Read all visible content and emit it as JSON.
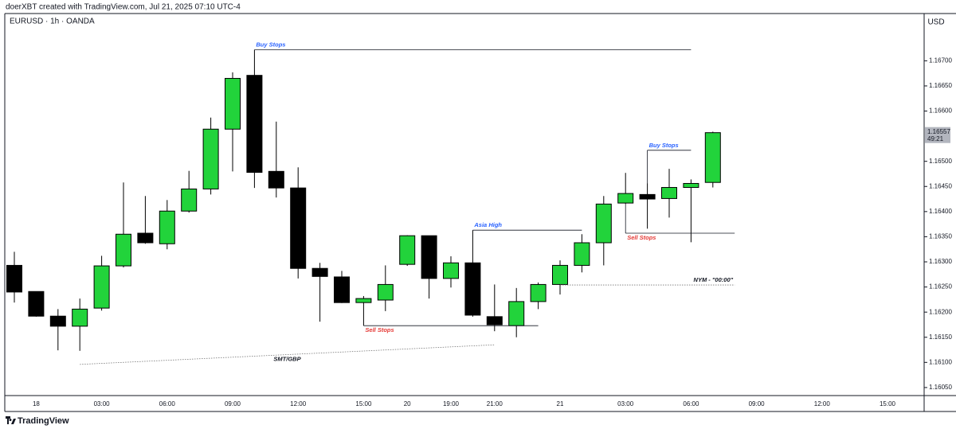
{
  "header": "doerXBT created with TradingView.com, Jul 21, 2025 07:10 UTC-4",
  "footer": "TradingView",
  "chart_data": {
    "type": "candlestick",
    "title": "EURUSD · 1h · OANDA",
    "unit": "USD",
    "categories": [
      null,
      "18",
      null,
      null,
      "03:00",
      null,
      null,
      "06:00",
      null,
      null,
      "09:00",
      null,
      null,
      "12:00",
      null,
      null,
      "15:00",
      null,
      "20",
      null,
      "19:00",
      null,
      "21:00",
      null,
      null,
      "21",
      null,
      null,
      "03:00",
      null,
      null,
      "06:00",
      null,
      null,
      "09:00",
      null,
      null,
      "12:00",
      null,
      null,
      "15:00"
    ],
    "open": [
      1.16293,
      1.16241,
      1.16192,
      1.16172,
      1.16208,
      1.16292,
      1.16357,
      1.16336,
      1.16401,
      1.16445,
      1.16564,
      1.16671,
      1.1648,
      1.16447,
      1.16287,
      1.1627,
      1.16219,
      1.16224,
      1.16295,
      1.16352,
      1.16267,
      1.16298,
      1.16191,
      1.16173,
      1.16221,
      1.16255,
      1.16293,
      1.16338,
      1.16417,
      1.16434,
      1.16426,
      1.16448,
      1.16458,
      null,
      null,
      null,
      null,
      null,
      null,
      null,
      null
    ],
    "high": [
      1.1632,
      1.16241,
      1.16206,
      1.16227,
      1.16312,
      1.16458,
      1.16431,
      1.16423,
      1.16481,
      1.16587,
      1.16677,
      1.16722,
      1.16579,
      1.16488,
      1.16298,
      1.16282,
      1.16232,
      1.16293,
      1.16353,
      1.16352,
      1.16311,
      1.16363,
      1.16255,
      1.16248,
      1.16259,
      1.16303,
      1.16355,
      1.16431,
      1.16477,
      1.16456,
      1.16485,
      1.16464,
      1.16559,
      null,
      null,
      null,
      null,
      null,
      null,
      null,
      null
    ],
    "low": [
      1.16219,
      1.16191,
      1.16124,
      1.16123,
      1.16203,
      1.16289,
      1.16336,
      1.16325,
      1.16398,
      1.16434,
      1.1648,
      1.16447,
      1.16428,
      1.16267,
      1.16181,
      1.16218,
      1.16173,
      1.16202,
      1.16292,
      1.16227,
      1.16249,
      1.16191,
      1.16162,
      1.1615,
      1.16206,
      1.16235,
      1.16279,
      1.16293,
      1.16415,
      1.16366,
      1.16388,
      1.16339,
      1.16448,
      null,
      null,
      null,
      null,
      null,
      null,
      null,
      null
    ],
    "close": [
      1.1624,
      1.16192,
      1.16172,
      1.16206,
      1.16292,
      1.16355,
      1.16338,
      1.16401,
      1.16445,
      1.16564,
      1.16665,
      1.16478,
      1.16447,
      1.16287,
      1.16271,
      1.16219,
      1.16227,
      1.16255,
      1.16352,
      1.16267,
      1.16298,
      1.16194,
      1.16175,
      1.16221,
      1.16255,
      1.16293,
      1.16338,
      1.16415,
      1.16436,
      1.16425,
      1.16448,
      1.16456,
      1.16557,
      null,
      null,
      null,
      null,
      null,
      null,
      null,
      null
    ],
    "up_color": "#22d33b",
    "down_color": "#000000",
    "grid": false,
    "ylim": [
      1.16034,
      1.16794
    ],
    "yticks": [
      {
        "value": 1.1605,
        "label": "1.16050"
      },
      {
        "value": 1.161,
        "label": "1.16100"
      },
      {
        "value": 1.1615,
        "label": "1.16150"
      },
      {
        "value": 1.162,
        "label": "1.16200"
      },
      {
        "value": 1.1625,
        "label": "1.16250"
      },
      {
        "value": 1.163,
        "label": "1.16300"
      },
      {
        "value": 1.1635,
        "label": "1.16350"
      },
      {
        "value": 1.164,
        "label": "1.16400"
      },
      {
        "value": 1.1645,
        "label": "1.16450"
      },
      {
        "value": 1.165,
        "label": "1.16500"
      },
      {
        "value": 1.166,
        "label": "1.16600"
      },
      {
        "value": 1.1665,
        "label": "1.16650"
      },
      {
        "value": 1.167,
        "label": "1.16700"
      }
    ],
    "last_price": 1.16557,
    "countdown": "49:21",
    "annotations": [
      {
        "text": "Buy Stops",
        "color": "#2962ff",
        "values": [
          1.16722,
          1.16722
        ],
        "start": 11,
        "end": 31,
        "style": "solid",
        "label_at": "start",
        "label_side": "above"
      },
      {
        "text": "Buy Stops",
        "color": "#2962ff",
        "values": [
          1.16522,
          1.16522
        ],
        "start": 29,
        "end": 31,
        "style": "solid",
        "label_at": "start",
        "label_side": "above"
      },
      {
        "text": "Sell Stops",
        "color": "#e53935",
        "values": [
          1.16357,
          1.16357
        ],
        "start": 28,
        "end": 33,
        "style": "solid",
        "label_at": "start",
        "label_side": "below"
      },
      {
        "text": "Asia High",
        "color": "#2962ff",
        "values": [
          1.16363,
          1.16363
        ],
        "start": 21,
        "end": 26,
        "style": "solid",
        "label_at": "start",
        "label_side": "above"
      },
      {
        "text": "Sell Stops",
        "color": "#e53935",
        "values": [
          1.16173,
          1.16173
        ],
        "start": 16,
        "end": 24,
        "style": "solid",
        "label_at": "start",
        "label_side": "below"
      },
      {
        "text": "NYM - \"00:00\"",
        "color": "#131722",
        "values": [
          1.16254,
          1.16254
        ],
        "start": 25,
        "end": 33,
        "style": "dotted",
        "label_at": "end",
        "label_side": "above"
      },
      {
        "text": "SMT/GBP",
        "color": "#131722",
        "values": [
          1.16096,
          1.16135
        ],
        "start": 3,
        "end": 22,
        "style": "dotted",
        "label_at": "middle",
        "label_side": "below"
      }
    ]
  }
}
